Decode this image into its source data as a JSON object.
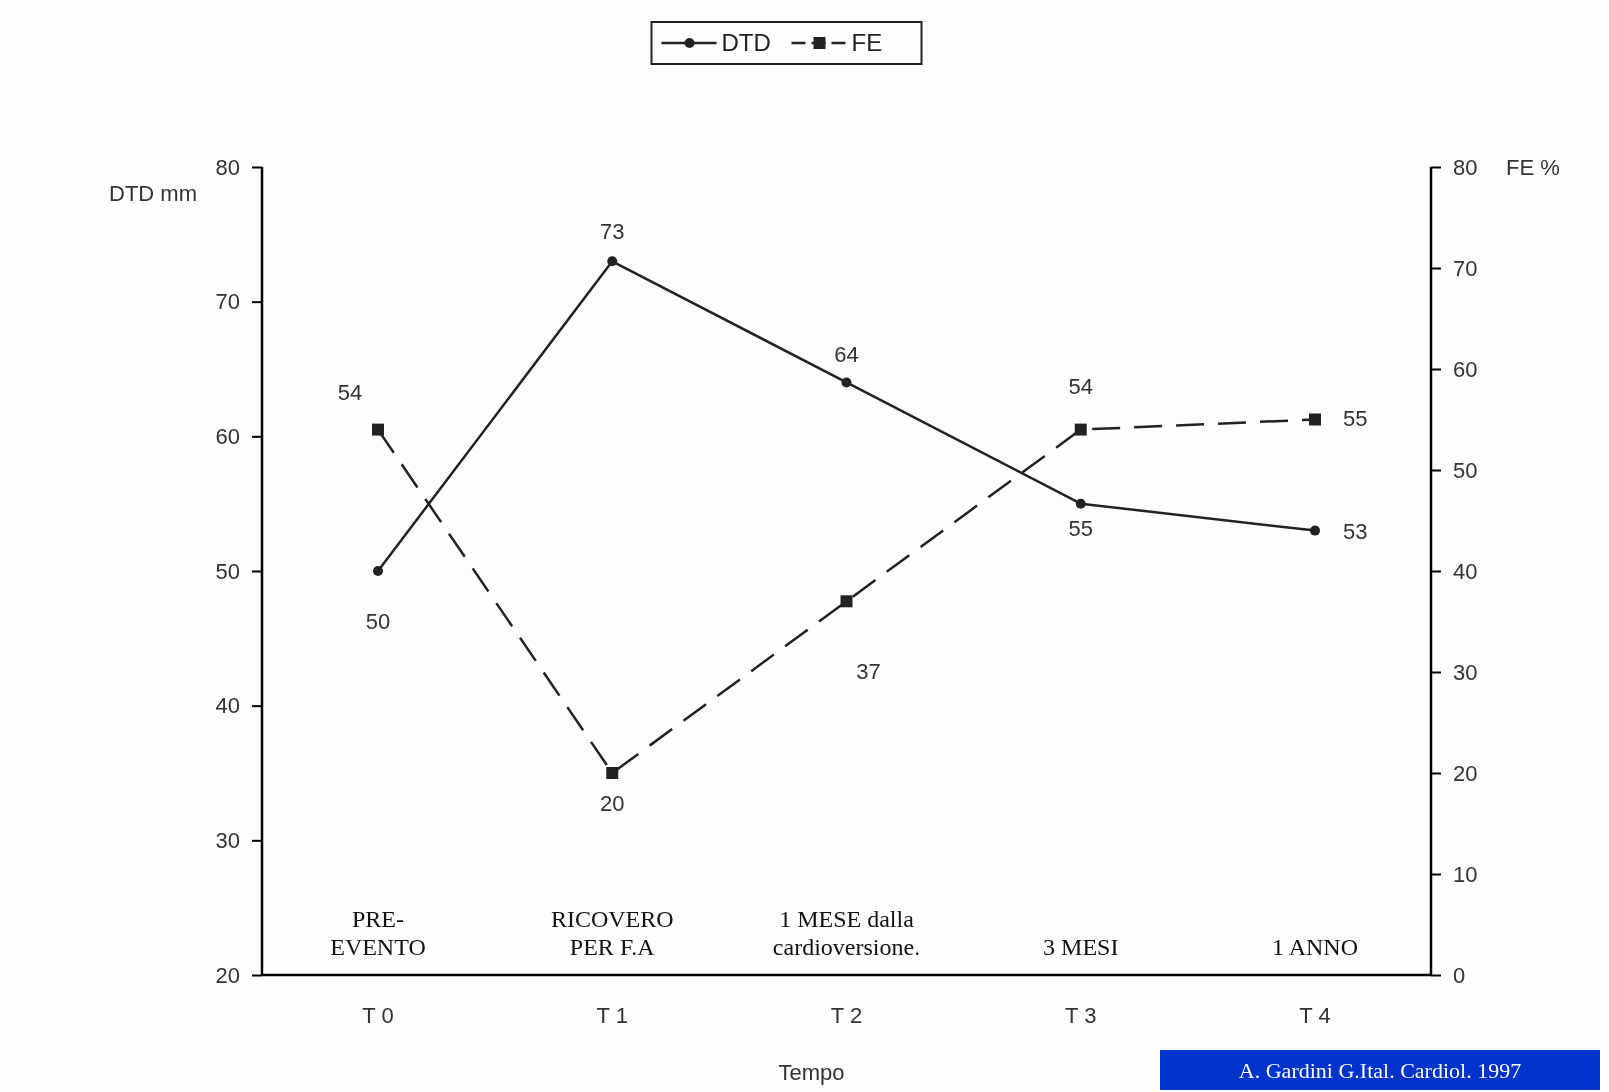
{
  "chart_data": {
    "type": "line",
    "xlabel": "Tempo",
    "ylabel": "DTD mm",
    "y2label": "FE %",
    "categories": [
      "T 0",
      "T 1",
      "T 2",
      "T 3",
      "T 4"
    ],
    "series": [
      {
        "name": "DTD",
        "color": "#222222",
        "values": [
          50,
          73,
          64,
          55,
          53
        ],
        "marker": "circle",
        "line_style": "solid"
      },
      {
        "name": "FE",
        "color": "#222222",
        "values": [
          54,
          20,
          37,
          54,
          55
        ],
        "axis": "y2",
        "marker": "square",
        "line_style": "dashed"
      }
    ],
    "ylim": [
      20,
      80
    ],
    "yticks": [
      20,
      30,
      40,
      50,
      60,
      70,
      80
    ],
    "y2lim": [
      0,
      80
    ],
    "y2ticks": [
      0,
      10,
      20,
      30,
      40,
      50,
      60,
      70,
      80
    ],
    "data_labels": true,
    "legend": "top",
    "annotations": [
      "PRE-\nEVENTO",
      "RICOVERO\nPER F.A",
      "1 MESE dalla\ncardioversione.",
      "3 MESI",
      "1 ANNO",
      "A. Gardini G.Ital. Cardiol. 1997"
    ]
  }
}
